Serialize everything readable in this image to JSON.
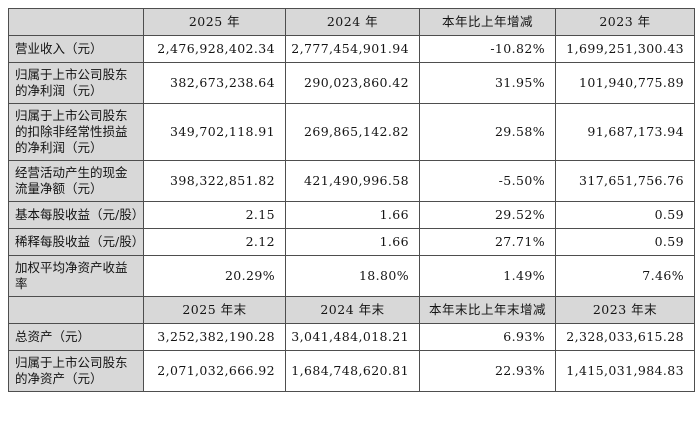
{
  "colors": {
    "header_bg": "#d8d8d8",
    "border": "#4e4e4e",
    "text": "#141414",
    "cell_bg": "#ffffff"
  },
  "table": {
    "sections": [
      {
        "header": [
          "",
          "2025 年",
          "2024 年",
          "本年比上年增减",
          "2023 年"
        ],
        "rows": [
          {
            "label": "营业收入（元）",
            "values": [
              "2,476,928,402.34",
              "2,777,454,901.94",
              "-10.82%",
              "1,699,251,300.43"
            ]
          },
          {
            "label": "归属于上市公司股东的净利润（元）",
            "values": [
              "382,673,238.64",
              "290,023,860.42",
              "31.95%",
              "101,940,775.89"
            ]
          },
          {
            "label": "归属于上市公司股东的扣除非经常性损益的净利润（元）",
            "values": [
              "349,702,118.91",
              "269,865,142.82",
              "29.58%",
              "91,687,173.94"
            ]
          },
          {
            "label": "经营活动产生的现金流量净额（元）",
            "values": [
              "398,322,851.82",
              "421,490,996.58",
              "-5.50%",
              "317,651,756.76"
            ]
          },
          {
            "label": "基本每股收益（元/股）",
            "values": [
              "2.15",
              "1.66",
              "29.52%",
              "0.59"
            ]
          },
          {
            "label": "稀释每股收益（元/股）",
            "values": [
              "2.12",
              "1.66",
              "27.71%",
              "0.59"
            ]
          },
          {
            "label": "加权平均净资产收益率",
            "values": [
              "20.29%",
              "18.80%",
              "1.49%",
              "7.46%"
            ]
          }
        ]
      },
      {
        "header": [
          "",
          "2025 年末",
          "2024 年末",
          "本年末比上年末增减",
          "2023 年末"
        ],
        "rows": [
          {
            "label": "总资产（元）",
            "values": [
              "3,252,382,190.28",
              "3,041,484,018.21",
              "6.93%",
              "2,328,033,615.28"
            ]
          },
          {
            "label": "归属于上市公司股东的净资产（元）",
            "values": [
              "2,071,032,666.92",
              "1,684,748,620.81",
              "22.93%",
              "1,415,031,984.83"
            ]
          }
        ]
      }
    ]
  }
}
